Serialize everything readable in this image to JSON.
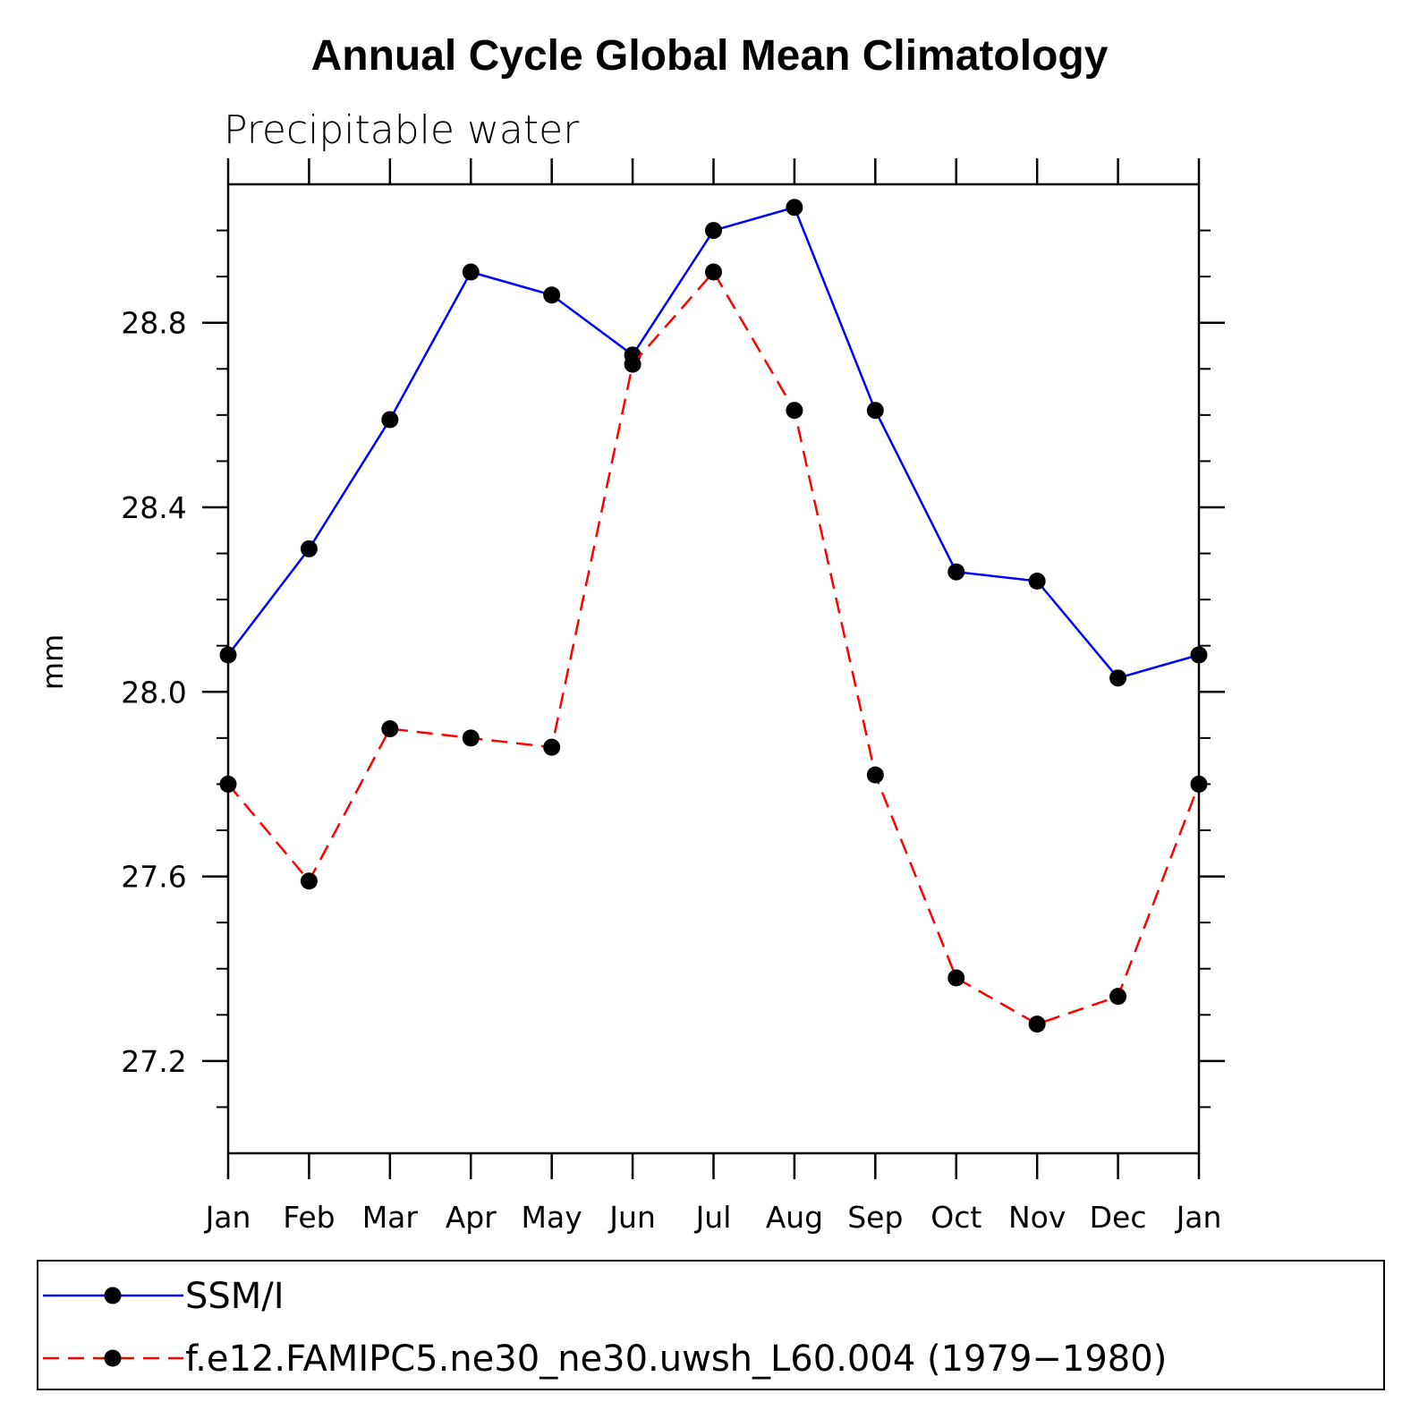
{
  "chart_data": {
    "type": "line",
    "title": "Annual Cycle Global Mean Climatology",
    "subtitle": "Precipitable water",
    "xlabel": "",
    "ylabel": "mm",
    "categories": [
      "Jan",
      "Feb",
      "Mar",
      "Apr",
      "May",
      "Jun",
      "Jul",
      "Aug",
      "Sep",
      "Oct",
      "Nov",
      "Dec",
      "Jan"
    ],
    "ylim": [
      27.0,
      29.1
    ],
    "yticks": [
      27.2,
      27.6,
      28.0,
      28.4,
      28.8
    ],
    "ytick_labels": [
      "27.2",
      "27.6",
      "28.0",
      "28.4",
      "28.8"
    ],
    "grid": false,
    "legend_position": "bottom",
    "series": [
      {
        "name": "SSM/I",
        "color": "#0000ff",
        "line_style": "solid",
        "marker": "filled-circle",
        "values": [
          28.08,
          28.31,
          28.59,
          28.91,
          28.86,
          28.73,
          29.0,
          29.05,
          28.61,
          28.26,
          28.24,
          28.03,
          28.08
        ]
      },
      {
        "name": "f.e12.FAMIPC5.ne30_ne30.uwsh_L60.004 (1979−1980)",
        "color": "#ff0000",
        "line_style": "dashed",
        "marker": "filled-circle",
        "values": [
          27.8,
          27.59,
          27.92,
          27.9,
          27.88,
          28.71,
          28.91,
          28.61,
          27.82,
          27.38,
          27.28,
          27.34,
          27.8
        ]
      }
    ]
  }
}
